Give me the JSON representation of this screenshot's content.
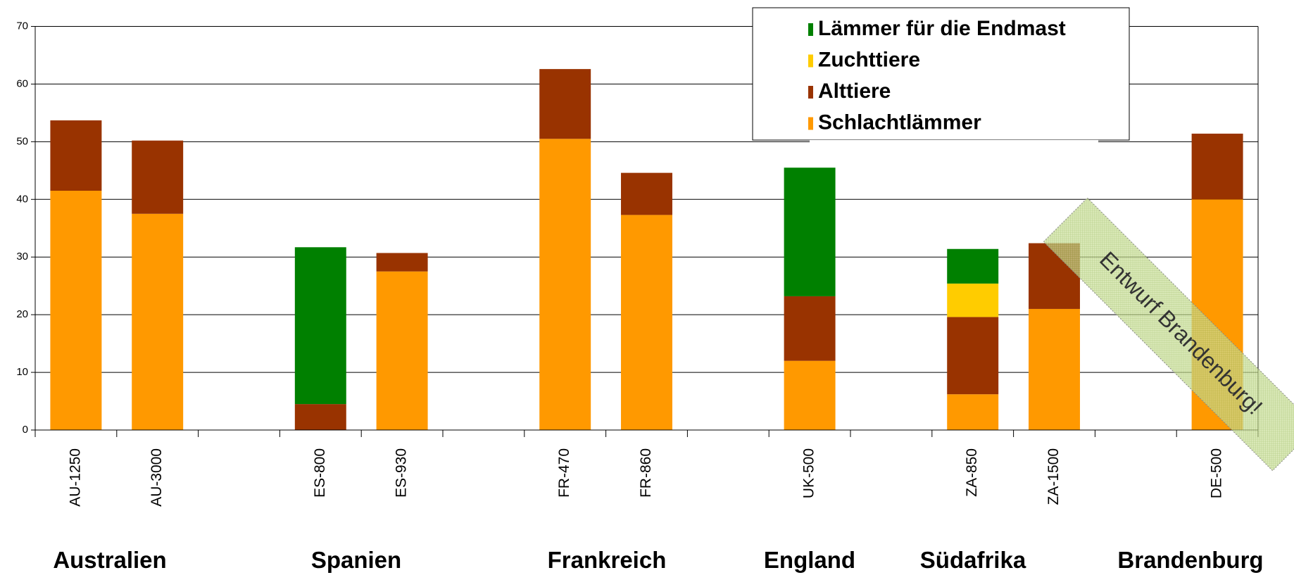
{
  "chart_data": {
    "type": "stacked_bar",
    "categories": [
      "AU-1250",
      "AU-3000",
      null,
      "ES-800",
      "ES-930",
      null,
      "FR-470",
      "FR-860",
      null,
      "UK-500",
      null,
      "ZA-850",
      "ZA-1500",
      null,
      "DE-500"
    ],
    "group_labels": [
      "Australien",
      "Spanien",
      "Frankreich",
      "England",
      "Südafrika",
      "Brandenburg"
    ],
    "series": [
      {
        "name": "Schlachtlämmer",
        "color": "#ff9900",
        "values": [
          41.5,
          37.5,
          null,
          null,
          27.5,
          null,
          50.5,
          37.3,
          null,
          12,
          null,
          6.2,
          21,
          null,
          40
        ]
      },
      {
        "name": "Alttiere",
        "color": "#993300",
        "values": [
          12.2,
          12.7,
          null,
          4.5,
          3.2,
          null,
          12.1,
          7.3,
          null,
          11.2,
          null,
          13.4,
          11.4,
          null,
          11.4
        ]
      },
      {
        "name": "Zuchttiere",
        "color": "#ffcc00",
        "values": [
          null,
          null,
          null,
          null,
          null,
          null,
          null,
          null,
          null,
          null,
          null,
          5.8,
          null,
          null,
          null
        ]
      },
      {
        "name": "Lämmer für die Endmast",
        "color": "#008000",
        "values": [
          null,
          null,
          null,
          27.2,
          null,
          null,
          null,
          null,
          null,
          22.3,
          null,
          6,
          null,
          null,
          null
        ]
      }
    ],
    "ylim": [
      0,
      70
    ],
    "yticks": [
      0,
      10,
      20,
      30,
      40,
      50,
      60,
      70
    ],
    "grid": true,
    "annotation": "Entwurf Brandenburg!"
  }
}
